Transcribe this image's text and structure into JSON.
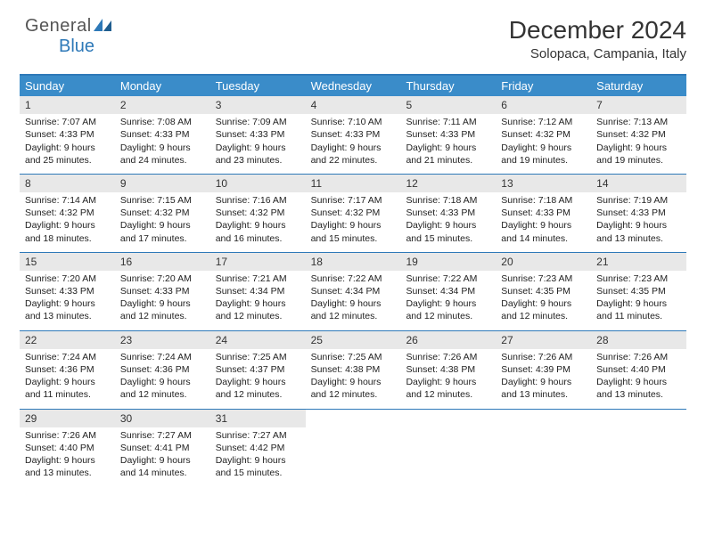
{
  "brand": {
    "part1": "General",
    "part2": "Blue"
  },
  "title": "December 2024",
  "location": "Solopaca, Campania, Italy",
  "colors": {
    "header_bg": "#3a8cc9",
    "border": "#2e79b8",
    "daynum_bg": "#e8e8e8",
    "text": "#222222",
    "brand_blue": "#2e79b8",
    "brand_gray": "#555555"
  },
  "layout": {
    "columns": 7,
    "rows": 5,
    "week_start": "Sunday"
  },
  "day_headers": [
    "Sunday",
    "Monday",
    "Tuesday",
    "Wednesday",
    "Thursday",
    "Friday",
    "Saturday"
  ],
  "days": [
    {
      "n": "1",
      "sunrise": "7:07 AM",
      "sunset": "4:33 PM",
      "dl1": "Daylight: 9 hours",
      "dl2": "and 25 minutes."
    },
    {
      "n": "2",
      "sunrise": "7:08 AM",
      "sunset": "4:33 PM",
      "dl1": "Daylight: 9 hours",
      "dl2": "and 24 minutes."
    },
    {
      "n": "3",
      "sunrise": "7:09 AM",
      "sunset": "4:33 PM",
      "dl1": "Daylight: 9 hours",
      "dl2": "and 23 minutes."
    },
    {
      "n": "4",
      "sunrise": "7:10 AM",
      "sunset": "4:33 PM",
      "dl1": "Daylight: 9 hours",
      "dl2": "and 22 minutes."
    },
    {
      "n": "5",
      "sunrise": "7:11 AM",
      "sunset": "4:33 PM",
      "dl1": "Daylight: 9 hours",
      "dl2": "and 21 minutes."
    },
    {
      "n": "6",
      "sunrise": "7:12 AM",
      "sunset": "4:32 PM",
      "dl1": "Daylight: 9 hours",
      "dl2": "and 19 minutes."
    },
    {
      "n": "7",
      "sunrise": "7:13 AM",
      "sunset": "4:32 PM",
      "dl1": "Daylight: 9 hours",
      "dl2": "and 19 minutes."
    },
    {
      "n": "8",
      "sunrise": "7:14 AM",
      "sunset": "4:32 PM",
      "dl1": "Daylight: 9 hours",
      "dl2": "and 18 minutes."
    },
    {
      "n": "9",
      "sunrise": "7:15 AM",
      "sunset": "4:32 PM",
      "dl1": "Daylight: 9 hours",
      "dl2": "and 17 minutes."
    },
    {
      "n": "10",
      "sunrise": "7:16 AM",
      "sunset": "4:32 PM",
      "dl1": "Daylight: 9 hours",
      "dl2": "and 16 minutes."
    },
    {
      "n": "11",
      "sunrise": "7:17 AM",
      "sunset": "4:32 PM",
      "dl1": "Daylight: 9 hours",
      "dl2": "and 15 minutes."
    },
    {
      "n": "12",
      "sunrise": "7:18 AM",
      "sunset": "4:33 PM",
      "dl1": "Daylight: 9 hours",
      "dl2": "and 15 minutes."
    },
    {
      "n": "13",
      "sunrise": "7:18 AM",
      "sunset": "4:33 PM",
      "dl1": "Daylight: 9 hours",
      "dl2": "and 14 minutes."
    },
    {
      "n": "14",
      "sunrise": "7:19 AM",
      "sunset": "4:33 PM",
      "dl1": "Daylight: 9 hours",
      "dl2": "and 13 minutes."
    },
    {
      "n": "15",
      "sunrise": "7:20 AM",
      "sunset": "4:33 PM",
      "dl1": "Daylight: 9 hours",
      "dl2": "and 13 minutes."
    },
    {
      "n": "16",
      "sunrise": "7:20 AM",
      "sunset": "4:33 PM",
      "dl1": "Daylight: 9 hours",
      "dl2": "and 12 minutes."
    },
    {
      "n": "17",
      "sunrise": "7:21 AM",
      "sunset": "4:34 PM",
      "dl1": "Daylight: 9 hours",
      "dl2": "and 12 minutes."
    },
    {
      "n": "18",
      "sunrise": "7:22 AM",
      "sunset": "4:34 PM",
      "dl1": "Daylight: 9 hours",
      "dl2": "and 12 minutes."
    },
    {
      "n": "19",
      "sunrise": "7:22 AM",
      "sunset": "4:34 PM",
      "dl1": "Daylight: 9 hours",
      "dl2": "and 12 minutes."
    },
    {
      "n": "20",
      "sunrise": "7:23 AM",
      "sunset": "4:35 PM",
      "dl1": "Daylight: 9 hours",
      "dl2": "and 12 minutes."
    },
    {
      "n": "21",
      "sunrise": "7:23 AM",
      "sunset": "4:35 PM",
      "dl1": "Daylight: 9 hours",
      "dl2": "and 11 minutes."
    },
    {
      "n": "22",
      "sunrise": "7:24 AM",
      "sunset": "4:36 PM",
      "dl1": "Daylight: 9 hours",
      "dl2": "and 11 minutes."
    },
    {
      "n": "23",
      "sunrise": "7:24 AM",
      "sunset": "4:36 PM",
      "dl1": "Daylight: 9 hours",
      "dl2": "and 12 minutes."
    },
    {
      "n": "24",
      "sunrise": "7:25 AM",
      "sunset": "4:37 PM",
      "dl1": "Daylight: 9 hours",
      "dl2": "and 12 minutes."
    },
    {
      "n": "25",
      "sunrise": "7:25 AM",
      "sunset": "4:38 PM",
      "dl1": "Daylight: 9 hours",
      "dl2": "and 12 minutes."
    },
    {
      "n": "26",
      "sunrise": "7:26 AM",
      "sunset": "4:38 PM",
      "dl1": "Daylight: 9 hours",
      "dl2": "and 12 minutes."
    },
    {
      "n": "27",
      "sunrise": "7:26 AM",
      "sunset": "4:39 PM",
      "dl1": "Daylight: 9 hours",
      "dl2": "and 13 minutes."
    },
    {
      "n": "28",
      "sunrise": "7:26 AM",
      "sunset": "4:40 PM",
      "dl1": "Daylight: 9 hours",
      "dl2": "and 13 minutes."
    },
    {
      "n": "29",
      "sunrise": "7:26 AM",
      "sunset": "4:40 PM",
      "dl1": "Daylight: 9 hours",
      "dl2": "and 13 minutes."
    },
    {
      "n": "30",
      "sunrise": "7:27 AM",
      "sunset": "4:41 PM",
      "dl1": "Daylight: 9 hours",
      "dl2": "and 14 minutes."
    },
    {
      "n": "31",
      "sunrise": "7:27 AM",
      "sunset": "4:42 PM",
      "dl1": "Daylight: 9 hours",
      "dl2": "and 15 minutes."
    }
  ],
  "labels": {
    "sunrise_prefix": "Sunrise: ",
    "sunset_prefix": "Sunset: "
  }
}
